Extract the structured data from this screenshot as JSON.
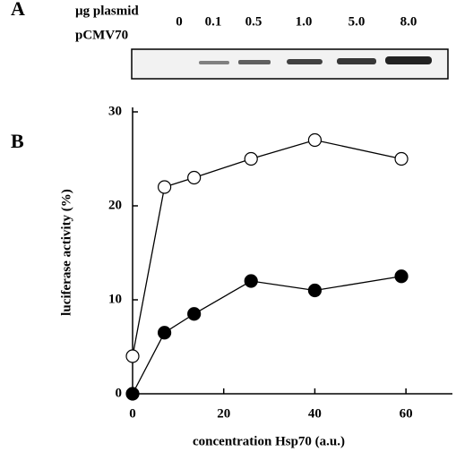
{
  "panel_a": {
    "label": "A",
    "row_label_1": "µg plasmid",
    "row_label_2": "pCMV70",
    "doses": [
      "0",
      "0.1",
      "0.5",
      "1.0",
      "5.0",
      "8.0"
    ]
  },
  "chart_data": {
    "type": "line",
    "panel_label": "B",
    "x_label": "concentration Hsp70 (a.u.)",
    "y_label": "luciferase activity (%)",
    "x": [
      0,
      7,
      13.5,
      26,
      40,
      59
    ],
    "series": [
      {
        "color": "#000000",
        "marker_fill": "#ffffff",
        "values": [
          4,
          22,
          23,
          25,
          27,
          25
        ]
      },
      {
        "color": "#000000",
        "marker_fill": "#000000",
        "values": [
          0,
          6.5,
          8.5,
          12,
          11,
          12.5
        ]
      }
    ],
    "xlim": [
      0,
      70
    ],
    "ylim": [
      0,
      30
    ],
    "xticks": [
      0,
      20,
      40,
      60
    ],
    "yticks": [
      0,
      10,
      20,
      30
    ]
  }
}
